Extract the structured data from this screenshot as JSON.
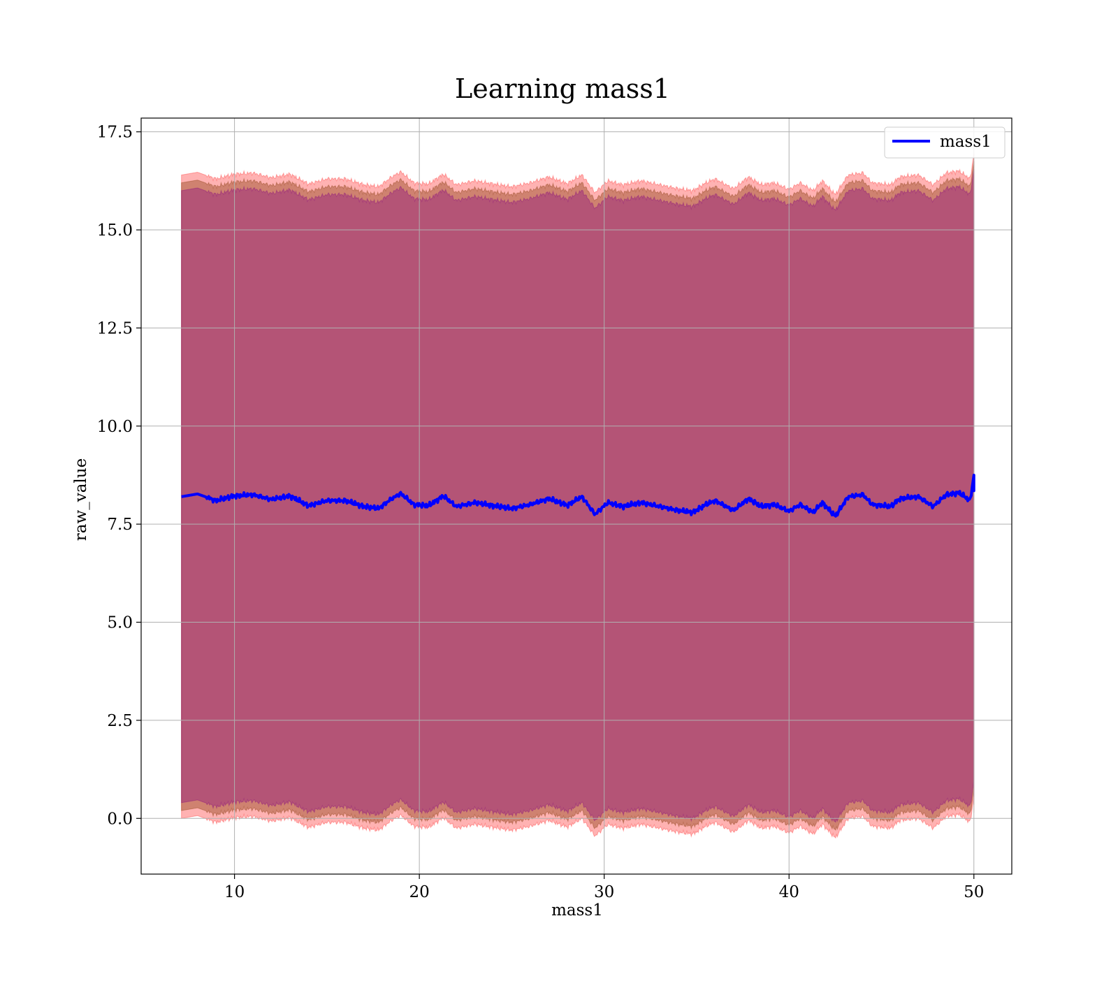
{
  "chart_data": {
    "type": "area",
    "title": "Learning mass1",
    "xlabel": "mass1",
    "ylabel": "raw_value",
    "xlim": [
      4.95,
      52.05
    ],
    "ylim": [
      -1.42,
      17.85
    ],
    "x_range": [
      7.13,
      50.0
    ],
    "x_ticks": [
      "10",
      "20",
      "30",
      "40",
      "50"
    ],
    "y_ticks": [
      "0.0",
      "2.5",
      "5.0",
      "7.5",
      "10.0",
      "12.5",
      "15.0",
      "17.5"
    ],
    "grid": true,
    "legend_position": "top-right",
    "legend": [
      "mass1"
    ],
    "series": [
      {
        "name": "mass1",
        "kind": "line",
        "color": "#0000ff",
        "x": [
          7.13,
          8.0,
          9.0,
          10.0,
          11.0,
          12.0,
          13.0,
          14.0,
          15.0,
          16.0,
          17.0,
          17.8,
          18.5,
          19.0,
          19.7,
          20.5,
          21.3,
          22.0,
          23.0,
          24.0,
          25.0,
          26.0,
          27.0,
          28.0,
          28.8,
          29.5,
          30.2,
          31.0,
          32.0,
          33.0,
          34.0,
          34.8,
          35.5,
          36.0,
          37.0,
          37.8,
          38.5,
          39.2,
          40.0,
          40.6,
          41.3,
          41.8,
          42.5,
          43.2,
          44.0,
          44.5,
          45.5,
          46.0,
          47.0,
          47.8,
          48.5,
          49.2,
          49.8,
          50.0
        ],
        "y": [
          8.2,
          8.27,
          8.1,
          8.22,
          8.25,
          8.13,
          8.22,
          7.97,
          8.1,
          8.1,
          7.95,
          7.9,
          8.15,
          8.28,
          8.0,
          7.97,
          8.22,
          7.95,
          8.05,
          7.97,
          7.9,
          8.0,
          8.15,
          7.98,
          8.2,
          7.75,
          8.05,
          7.95,
          8.05,
          7.95,
          7.85,
          7.8,
          8.0,
          8.1,
          7.85,
          8.15,
          7.95,
          8.0,
          7.83,
          8.0,
          7.8,
          8.05,
          7.7,
          8.2,
          8.25,
          8.0,
          7.95,
          8.15,
          8.2,
          7.95,
          8.25,
          8.3,
          8.1,
          8.75
        ]
      },
      {
        "name": "",
        "kind": "band",
        "color": "#ff0000",
        "opacity": 0.3,
        "offset_upper": 8.2,
        "offset_lower": 8.2
      },
      {
        "name": "",
        "kind": "band",
        "color": "#a0522d",
        "opacity": 0.5,
        "offset_upper": 8.0,
        "offset_lower": 8.0
      },
      {
        "name": "",
        "kind": "band",
        "color": "#800080",
        "opacity": 0.35,
        "offset_upper": 7.8,
        "offset_lower": 7.8
      }
    ]
  }
}
